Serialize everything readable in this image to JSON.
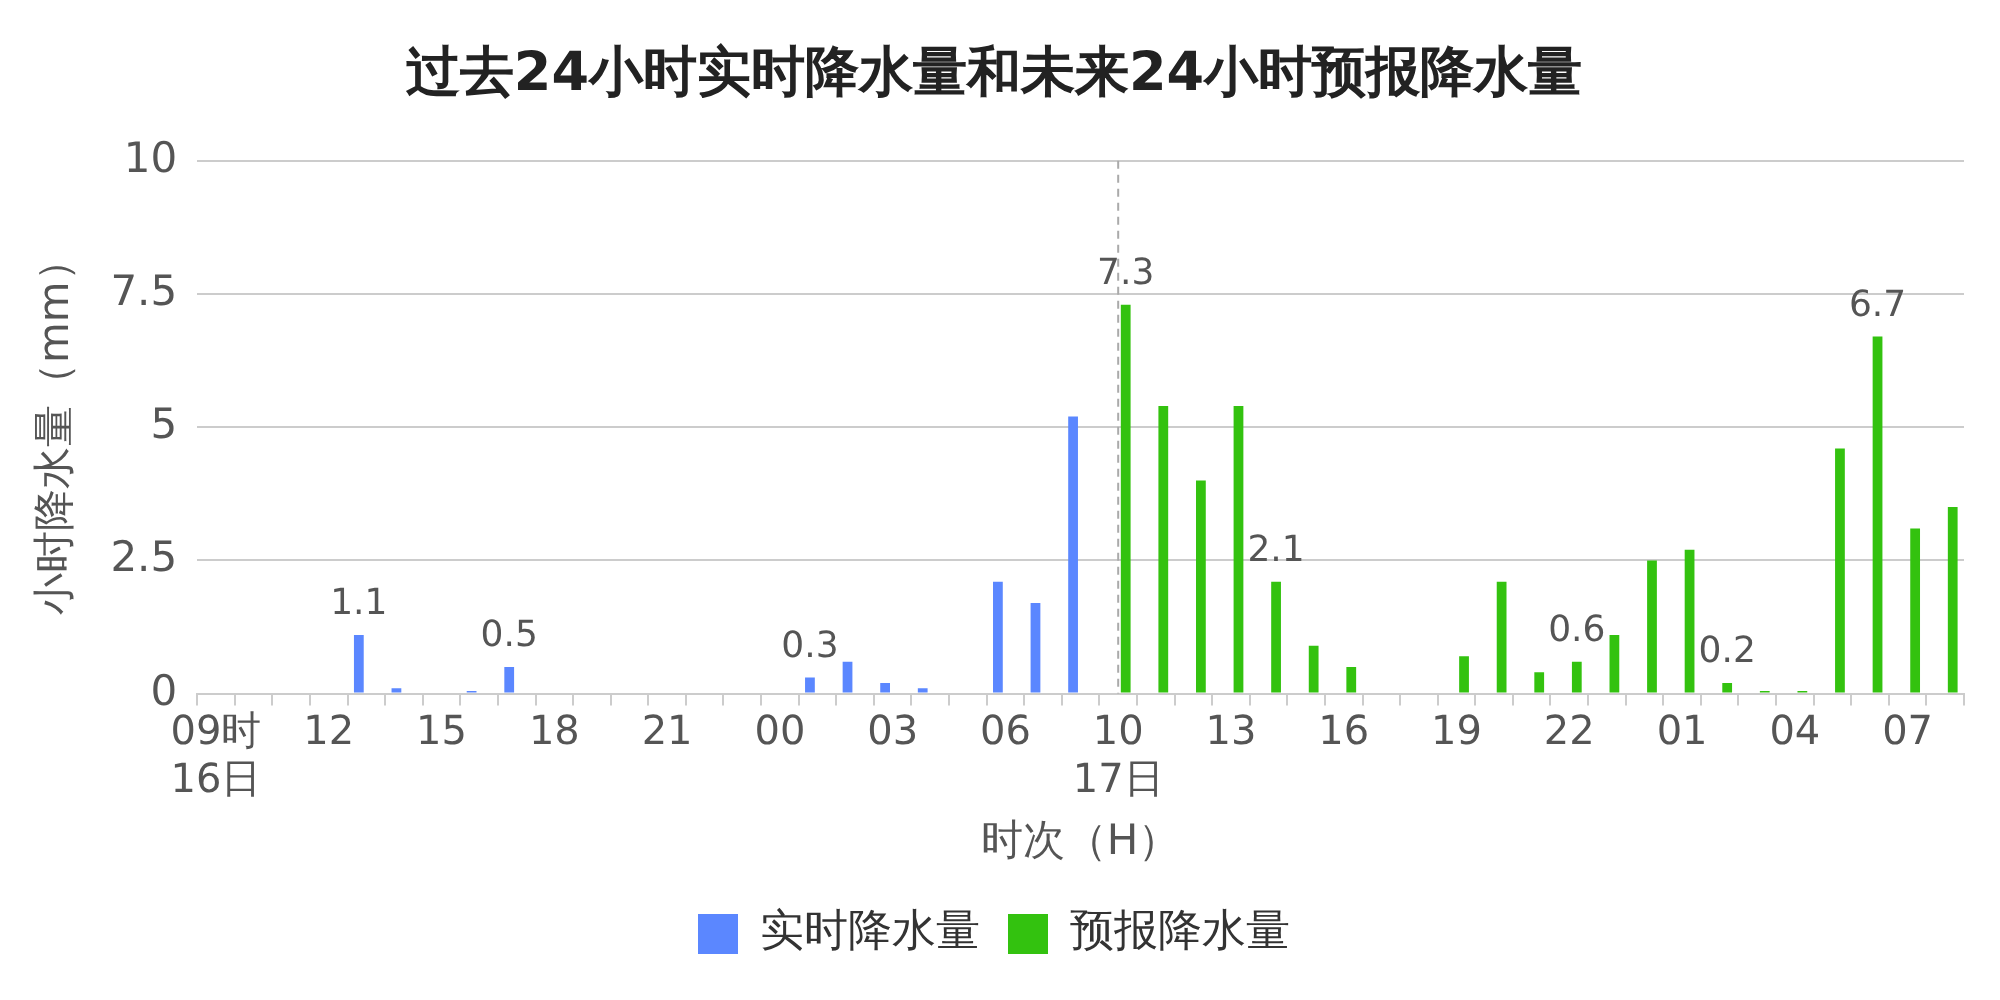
{
  "chart_data": {
    "type": "bar",
    "title": "过去24小时实时降水量和未来24小时预报降水量",
    "xlabel": "时次（H）",
    "ylabel": "小时降水量（mm）",
    "categories": [
      "09时\n16日",
      null,
      null,
      "12",
      null,
      null,
      "15",
      null,
      null,
      "18",
      null,
      null,
      "21",
      null,
      null,
      "00",
      null,
      null,
      "03",
      null,
      null,
      "06",
      null,
      null,
      "10\n17日",
      null,
      null,
      "13",
      null,
      null,
      "16",
      null,
      null,
      "19",
      null,
      null,
      "22",
      null,
      null,
      "01",
      null,
      null,
      "04",
      null,
      null,
      "07",
      null
    ],
    "series": [
      {
        "name": "实时降水量",
        "color": "#5b87ff",
        "values": [
          0,
          0,
          0,
          0,
          1.1,
          0.1,
          0,
          0.05,
          0.5,
          0,
          0,
          0,
          0,
          0,
          0,
          0,
          0.3,
          0.6,
          0.2,
          0.1,
          0,
          2.1,
          1.7,
          5.2,
          null,
          null,
          null,
          null,
          null,
          null,
          null,
          null,
          null,
          null,
          null,
          null,
          null,
          null,
          null,
          null,
          null,
          null,
          null,
          null,
          null,
          null,
          null
        ],
        "value_labels": [
          null,
          null,
          null,
          null,
          "1.1",
          null,
          null,
          null,
          "0.5",
          null,
          null,
          null,
          null,
          null,
          null,
          null,
          "0.3",
          null,
          null,
          null,
          null,
          null,
          null,
          null,
          null,
          null,
          null,
          null,
          null,
          null,
          null,
          null,
          null,
          null,
          null,
          null,
          null,
          null,
          null,
          null,
          null,
          null,
          null,
          null,
          null,
          null,
          null
        ]
      },
      {
        "name": "预报降水量",
        "color": "#33c20f",
        "values": [
          null,
          null,
          null,
          null,
          null,
          null,
          null,
          null,
          null,
          null,
          null,
          null,
          null,
          null,
          null,
          null,
          null,
          null,
          null,
          null,
          null,
          null,
          null,
          null,
          7.3,
          5.4,
          4.0,
          5.4,
          2.1,
          0.9,
          0.5,
          0,
          0,
          0.7,
          2.1,
          0.4,
          0.6,
          1.1,
          2.5,
          2.7,
          0.2,
          0.05,
          0.05,
          4.6,
          6.7,
          3.1,
          3.5
        ],
        "value_labels": [
          null,
          null,
          null,
          null,
          null,
          null,
          null,
          null,
          null,
          null,
          null,
          null,
          null,
          null,
          null,
          null,
          null,
          null,
          null,
          null,
          null,
          null,
          null,
          null,
          "7.3",
          null,
          null,
          null,
          "2.1",
          null,
          null,
          null,
          null,
          null,
          null,
          null,
          "0.6",
          null,
          null,
          null,
          "0.2",
          null,
          null,
          null,
          "6.7",
          null,
          null
        ]
      }
    ],
    "ylim": [
      0,
      10
    ],
    "yticks": [
      0,
      2.5,
      5,
      7.5,
      10
    ],
    "grid": "y",
    "legend": "bottom",
    "ref_lines": [
      {
        "axis": "x",
        "value": "10\n17日",
        "color": "#aaaaaa",
        "line_style": "dashed"
      }
    ]
  }
}
